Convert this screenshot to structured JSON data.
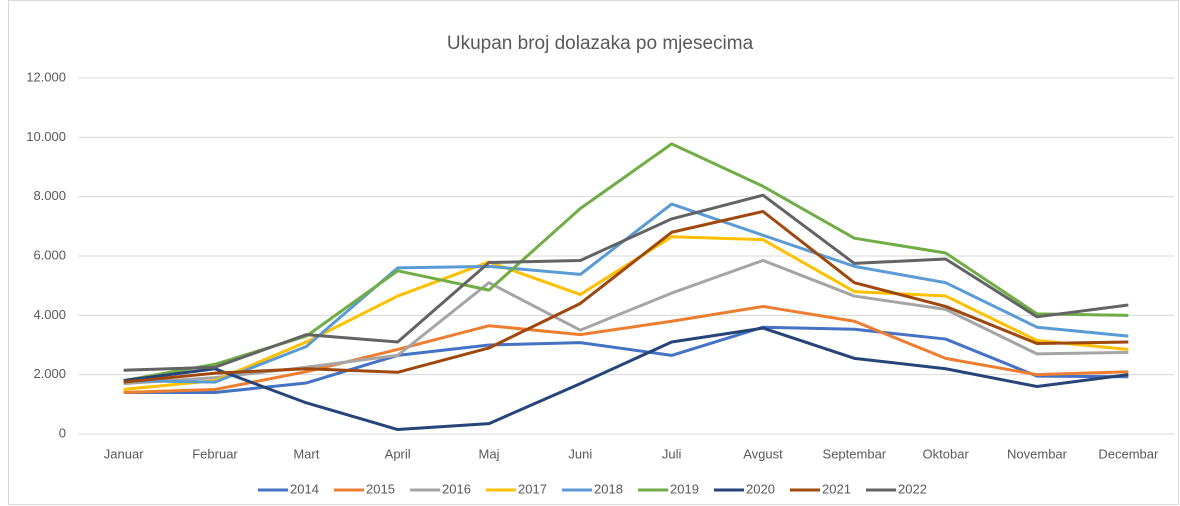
{
  "chart_data": {
    "type": "line",
    "title": "Ukupan broj dolazaka po mjesecima",
    "categories": [
      "Januar",
      "Februar",
      "Mart",
      "April",
      "Maj",
      "Juni",
      "Juli",
      "Avgust",
      "Septembar",
      "Oktobar",
      "Novembar",
      "Decembar"
    ],
    "ylim": [
      0,
      12000
    ],
    "yticks": [
      0,
      {
        "value": 2000,
        "label": "2.000"
      },
      {
        "value": 4000,
        "label": "4.000"
      },
      {
        "value": 6000,
        "label": "6.000"
      },
      {
        "value": 8000,
        "label": "8.000"
      },
      {
        "value": 10000,
        "label": "10.000"
      },
      {
        "value": 12000,
        "label": "12.000"
      }
    ],
    "grid": true,
    "legend": "bottom",
    "series": [
      {
        "name": "2014",
        "color": "#4472c4",
        "values": [
          1400,
          1400,
          1720,
          2650,
          3000,
          3080,
          2650,
          3600,
          3530,
          3200,
          1950,
          1930
        ]
      },
      {
        "name": "2015",
        "color": "#ed7d31",
        "values": [
          1400,
          1500,
          2100,
          2850,
          3650,
          3350,
          3800,
          4300,
          3800,
          2550,
          2000,
          2100
        ]
      },
      {
        "name": "2016",
        "color": "#a5a5a5",
        "values": [
          1700,
          1900,
          2250,
          2650,
          5100,
          3500,
          4750,
          5850,
          4650,
          4200,
          2700,
          2750
        ]
      },
      {
        "name": "2017",
        "color": "#ffc000",
        "values": [
          1500,
          1800,
          3100,
          4650,
          5800,
          4700,
          6650,
          6550,
          4800,
          4650,
          3150,
          2850
        ]
      },
      {
        "name": "2018",
        "color": "#5b9bd5",
        "values": [
          1800,
          1750,
          2950,
          5600,
          5650,
          5380,
          7750,
          6700,
          5650,
          5100,
          3600,
          3300
        ]
      },
      {
        "name": "2019",
        "color": "#70ad47",
        "values": [
          1800,
          2350,
          3300,
          5500,
          4850,
          7600,
          9780,
          8350,
          6600,
          6100,
          4050,
          4000
        ]
      },
      {
        "name": "2020",
        "color": "#264478",
        "values": [
          1800,
          2200,
          1050,
          150,
          350,
          1700,
          3100,
          3570,
          2550,
          2200,
          1600,
          2000
        ]
      },
      {
        "name": "2021",
        "color": "#9e480e",
        "values": [
          1750,
          2050,
          2200,
          2080,
          2900,
          4400,
          6800,
          7500,
          5100,
          4300,
          3050,
          3100
        ]
      },
      {
        "name": "2022",
        "color": "#636363",
        "values": [
          2150,
          2250,
          3350,
          3100,
          5780,
          5850,
          7250,
          8050,
          5750,
          5900,
          3950,
          4350
        ]
      }
    ]
  }
}
